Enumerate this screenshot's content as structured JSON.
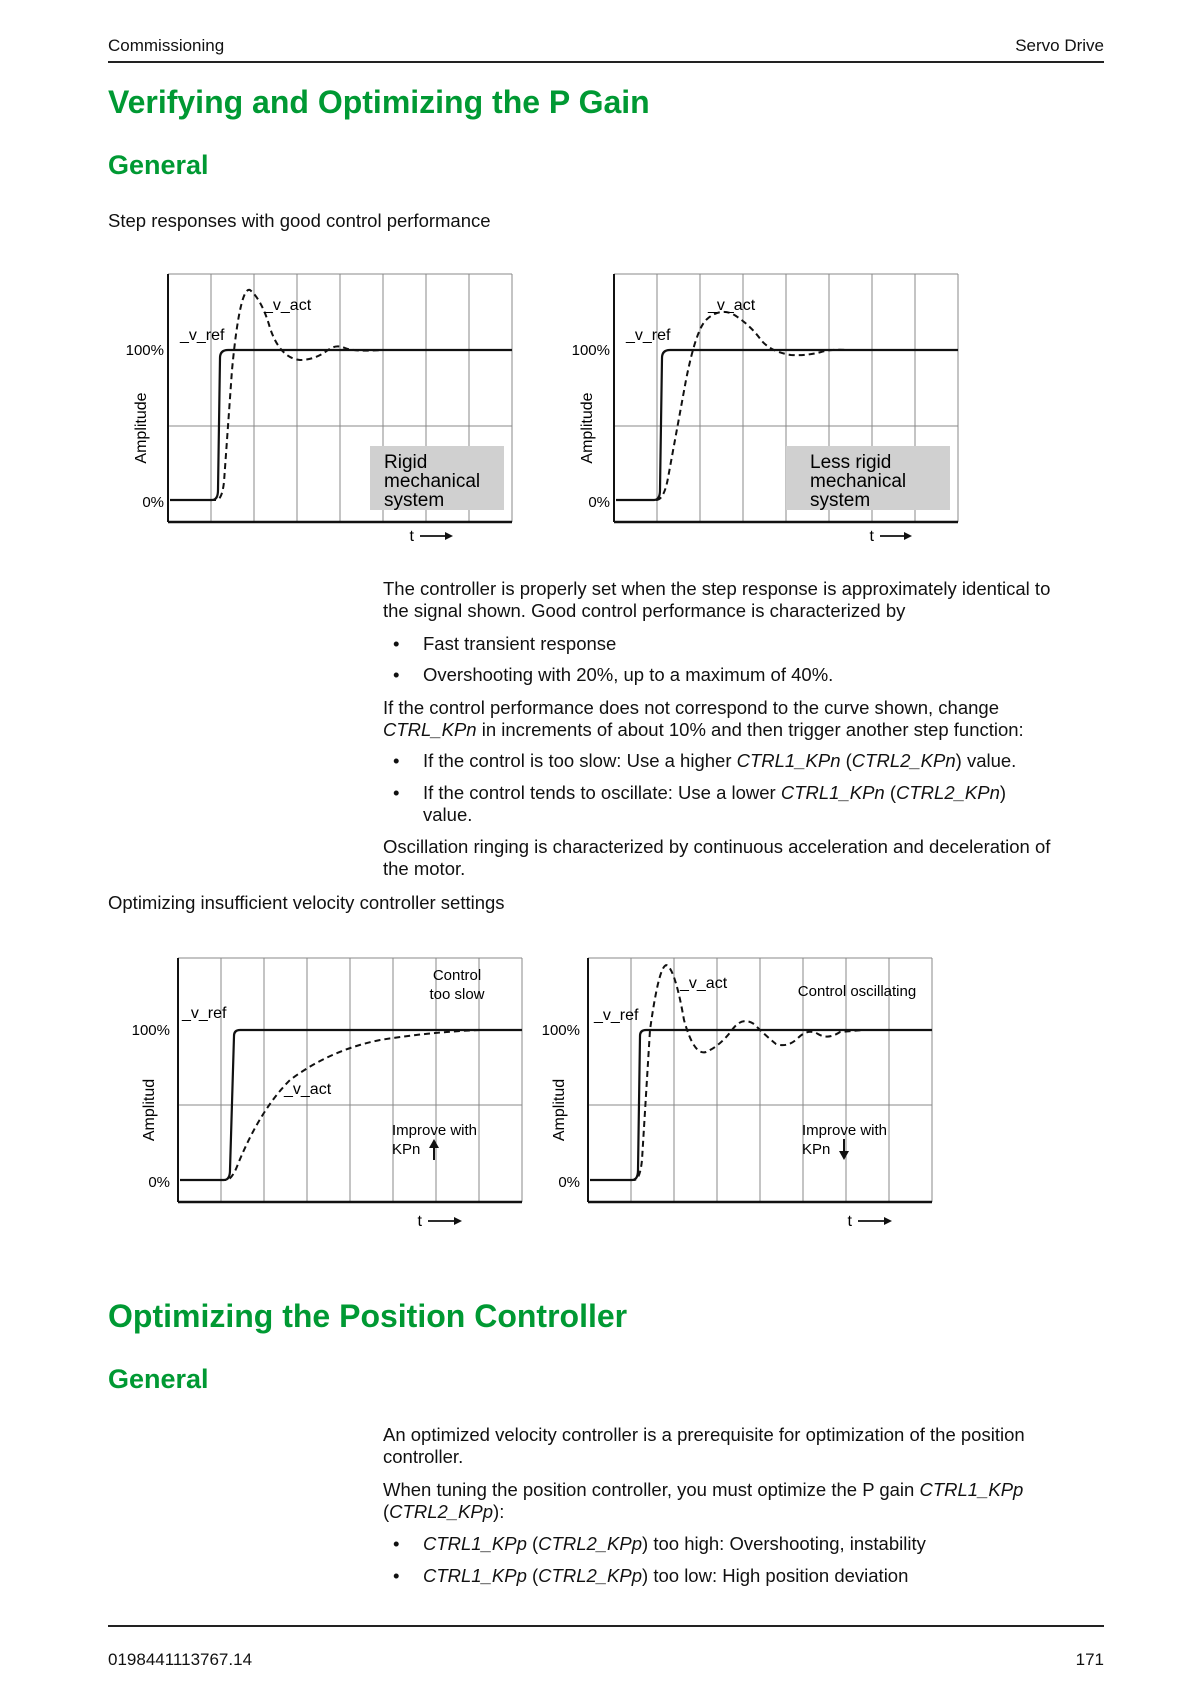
{
  "header": {
    "left": "Commissioning",
    "right": "Servo Drive"
  },
  "section1": {
    "title": "Verifying and Optimizing the P Gain",
    "subtitle": "General",
    "intro": "Step responses with good control performance",
    "figures_top": [
      {
        "v_ref": "_v_ref",
        "v_act": "_v_act",
        "y_top": "100%",
        "y_bottom": "0%",
        "ylabel": "Amplitude",
        "xlabel": "t",
        "box": [
          "Rigid",
          "mechanical",
          "system"
        ]
      },
      {
        "v_ref": "_v_ref",
        "v_act": "_v_act",
        "y_top": "100%",
        "y_bottom": "0%",
        "ylabel": "Amplitude",
        "xlabel": "t",
        "box": [
          "Less rigid",
          "mechanical",
          "system"
        ]
      }
    ],
    "p1_line1": "The controller is properly set when the step response is approximately identical to",
    "p1_line2": "the signal shown. Good control performance is characterized by",
    "bullets1": [
      "Fast transient response",
      "Overshooting with 20%, up to a maximum of 40%."
    ],
    "p2_line1": "If the control performance does not correspond to the curve shown, change",
    "p2_italic": "CTRL_KPn",
    "p2_rest": " in increments of about 10% and then trigger another step function:",
    "b3_a": "If the control is too slow: Use a higher ",
    "b3_i1": "CTRL1_KPn",
    "b3_b": " (",
    "b3_i2": "CTRL2_KPn",
    "b3_c": ") value.",
    "b4_a": "If the control tends to oscillate: Use a lower ",
    "b4_i1": "CTRL1_KPn",
    "b4_b": " (",
    "b4_i2": "CTRL2_KPn",
    "b4_c": ")",
    "b4_line2": "value.",
    "p3_line1": "Oscillation ringing is characterized by continuous acceleration and deceleration of",
    "p3_line2": "the motor.",
    "intro2": "Optimizing insufficient velocity controller settings",
    "figures_bottom": [
      {
        "v_ref": "_v_ref",
        "v_act": "_v_act",
        "y_top": "100%",
        "y_bottom": "0%",
        "ylabel": "Amplitud",
        "xlabel": "t",
        "note": [
          "Control",
          "too slow"
        ],
        "improve": [
          "Improve with",
          "KPn"
        ]
      },
      {
        "v_ref": "_v_ref",
        "v_act": "_v_act",
        "y_top": "100%",
        "y_bottom": "0%",
        "ylabel": "Amplitud",
        "xlabel": "t",
        "note": [
          "Control oscillating"
        ],
        "improve": [
          "Improve with",
          "KPn"
        ]
      }
    ]
  },
  "section2": {
    "title": "Optimizing the Position Controller",
    "subtitle": "General",
    "p1_line1": "An optimized velocity controller is a prerequisite for optimization of the position",
    "p1_line2": "controller.",
    "p2_a": "When tuning the position controller, you must optimize the P gain ",
    "p2_i1": "CTRL1_KPp",
    "p2_b": "(",
    "p2_i2": "CTRL2_KPp",
    "p2_c": "):",
    "b1_i1": "CTRL1_KPp",
    "b1_a": " (",
    "b1_i2": "CTRL2_KPp",
    "b1_b": ") too high: Overshooting, instability",
    "b2_i1": "CTRL1_KPp",
    "b2_a": " (",
    "b2_i2": "CTRL2_KPp",
    "b2_b": ") too low: High position deviation"
  },
  "bullet_char": "•",
  "footer": {
    "left": "0198441113767.14",
    "right": "171"
  }
}
